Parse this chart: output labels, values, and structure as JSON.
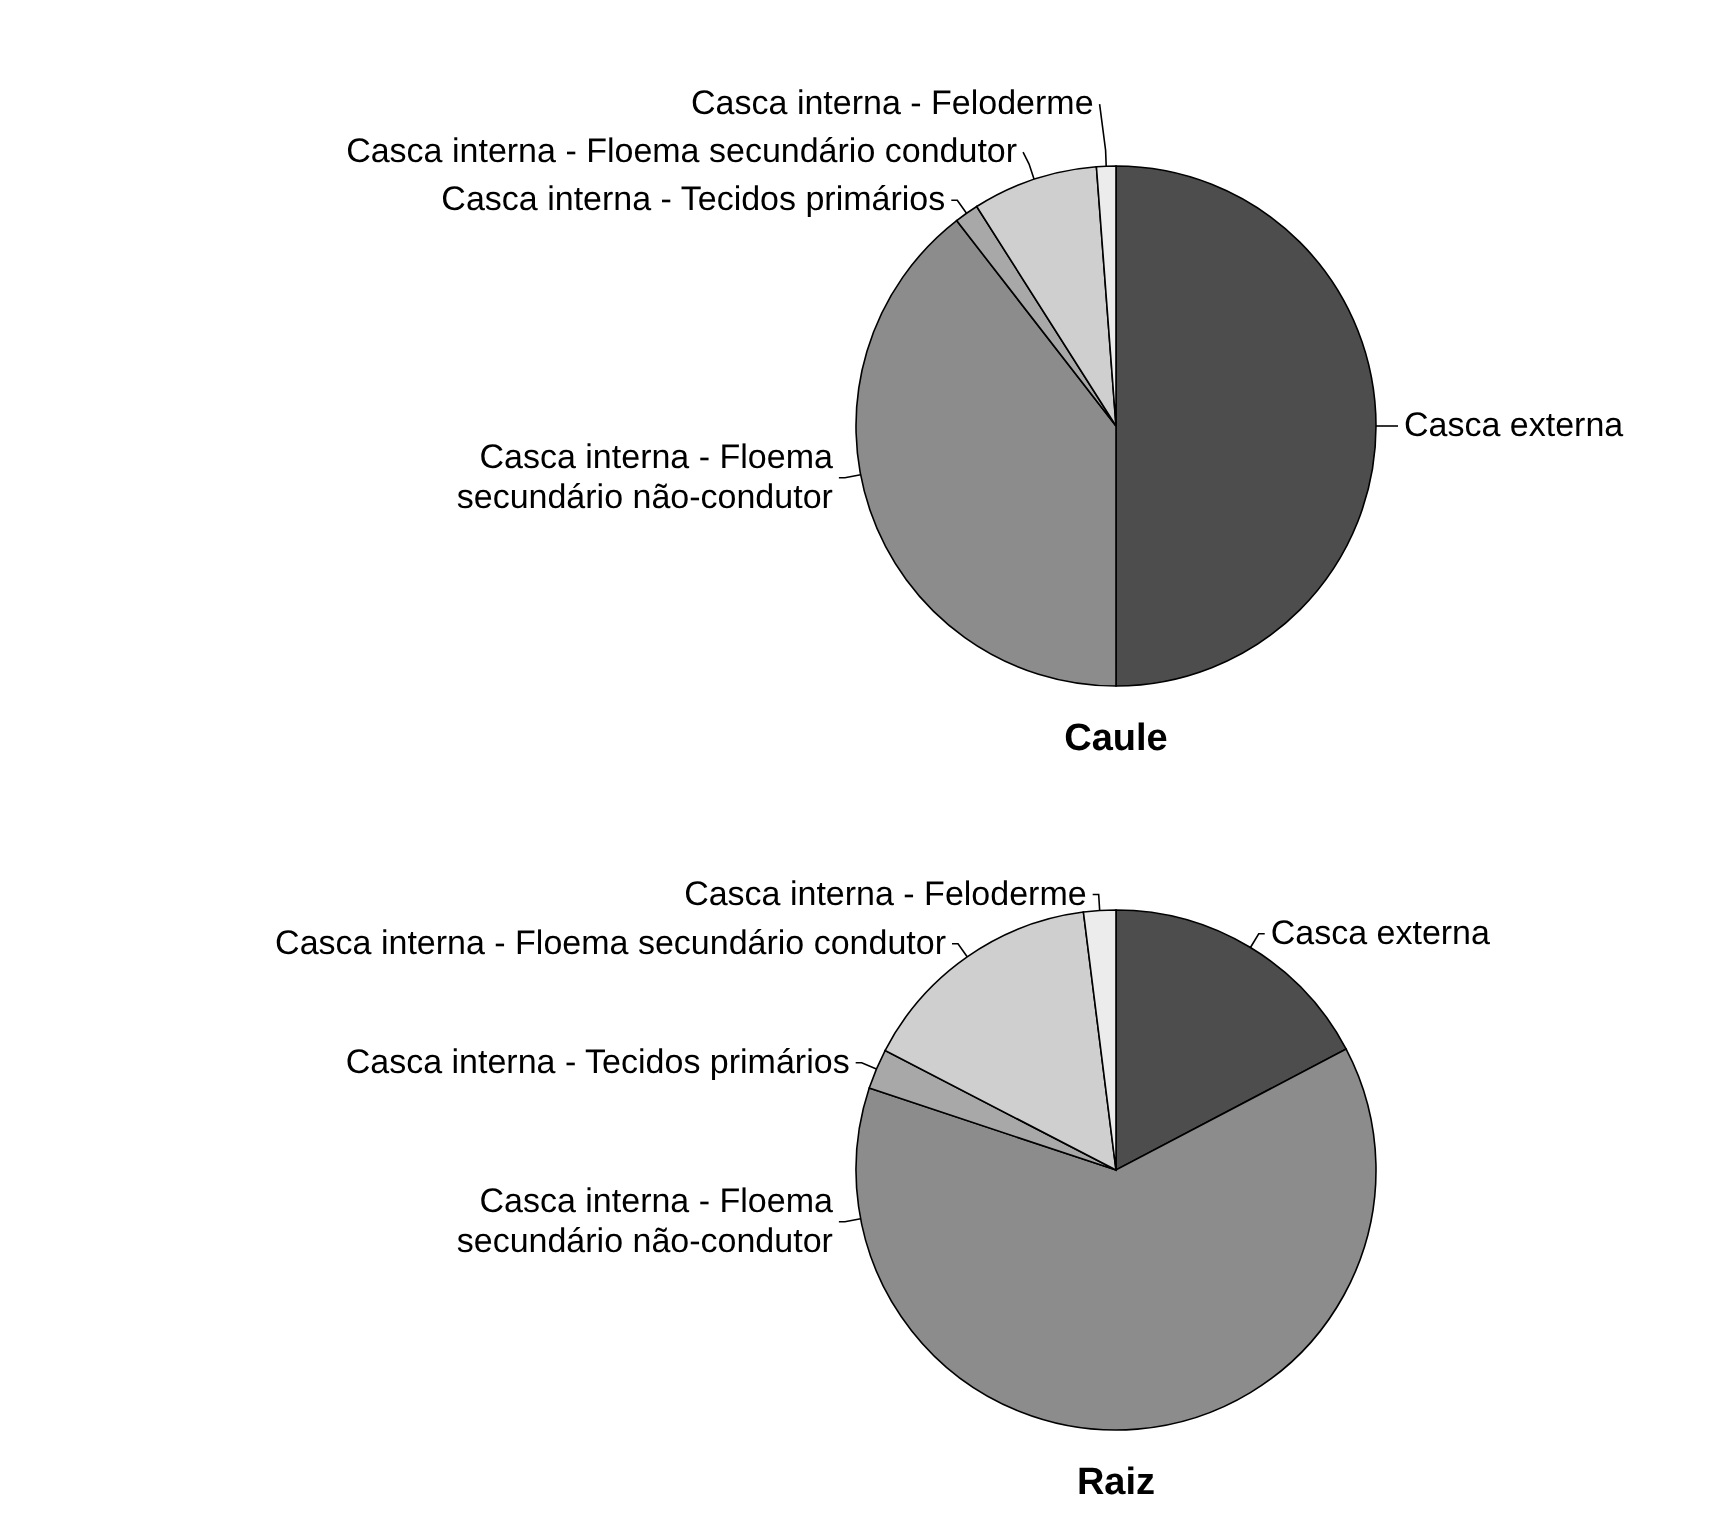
{
  "chart_data": [
    {
      "type": "pie",
      "title": "Caule",
      "categories": [
        "Casca externa",
        "Casca interna - Floema secundário não-condutor",
        "Casca interna - Tecidos primários",
        "Casca interna - Floema secundário condutor",
        "Casca interna - Feloderme"
      ],
      "values": [
        50,
        39.5,
        1.5,
        7.8,
        1.2
      ],
      "colors": [
        "#4d4d4d",
        "#8c8c8c",
        "#a8a8a8",
        "#cfcfcf",
        "#ececec"
      ]
    },
    {
      "type": "pie",
      "title": "Raiz",
      "categories": [
        "Casca externa",
        "Casca interna - Floema secundário não-condutor",
        "Casca interna - Tecidos primários",
        "Casca interna - Floema secundário condutor",
        "Casca interna - Feloderme"
      ],
      "values": [
        17.3,
        62.8,
        2.5,
        15.4,
        2
      ],
      "colors": [
        "#4d4d4d",
        "#8c8c8c",
        "#a8a8a8",
        "#cfcfcf",
        "#ececec"
      ]
    }
  ]
}
